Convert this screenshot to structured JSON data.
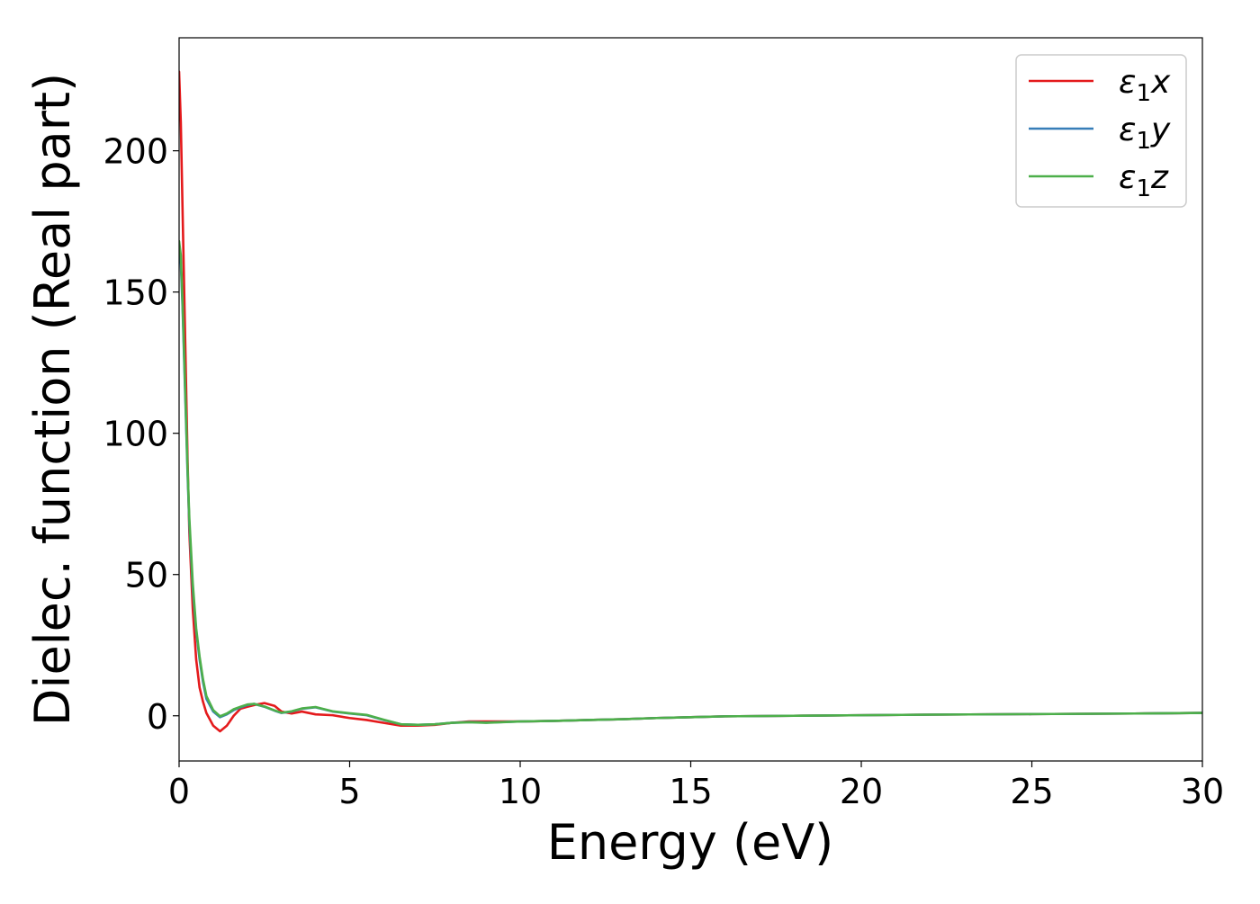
{
  "chart_data": {
    "type": "line",
    "title": "",
    "xlabel": "Energy (eV)",
    "ylabel": "Dielec. function (Real part)",
    "xlim": [
      0,
      30
    ],
    "ylim": [
      -16,
      240
    ],
    "xticks": [
      0,
      5,
      10,
      15,
      20,
      25,
      30
    ],
    "xtick_labels": [
      "0",
      "5",
      "10",
      "15",
      "20",
      "25",
      "30"
    ],
    "yticks": [
      0,
      50,
      100,
      150,
      200
    ],
    "ytick_labels": [
      "0",
      "50",
      "100",
      "150",
      "200"
    ],
    "grid": false,
    "legend": {
      "position": "top-right",
      "entries": [
        "ε1x",
        "ε1y",
        "ε1z"
      ]
    },
    "series": [
      {
        "name": "ε1x",
        "color": "#e41a1c",
        "x": [
          0.0,
          0.05,
          0.1,
          0.15,
          0.2,
          0.25,
          0.3,
          0.4,
          0.5,
          0.6,
          0.7,
          0.8,
          1.0,
          1.2,
          1.4,
          1.6,
          1.8,
          2.0,
          2.2,
          2.5,
          2.8,
          3.0,
          3.3,
          3.6,
          4.0,
          4.5,
          5.0,
          5.5,
          6.0,
          6.5,
          7.0,
          7.5,
          8.0,
          8.5,
          9.0,
          10.0,
          11.0,
          12.0,
          13.0,
          14.0,
          15.0,
          16.0,
          18.0,
          20.0,
          22.0,
          25.0,
          28.0,
          30.0
        ],
        "values": [
          228,
          210,
          180,
          150,
          120,
          90,
          65,
          38,
          20,
          10,
          5,
          1,
          -3.5,
          -5.5,
          -3.5,
          0,
          2.5,
          3.2,
          3.8,
          4.5,
          3.5,
          1.5,
          0.8,
          1.5,
          0.5,
          0.2,
          -0.8,
          -1.5,
          -2.5,
          -3.5,
          -3.5,
          -3.2,
          -2.5,
          -2.0,
          -2.0,
          -2.0,
          -1.8,
          -1.5,
          -1.2,
          -0.8,
          -0.5,
          -0.2,
          0.0,
          0.2,
          0.4,
          0.6,
          0.8,
          1.0
        ]
      },
      {
        "name": "ε1y",
        "color": "#377eb8",
        "x": [
          0.0,
          0.05,
          0.1,
          0.15,
          0.2,
          0.25,
          0.3,
          0.4,
          0.5,
          0.6,
          0.7,
          0.8,
          1.0,
          1.2,
          1.4,
          1.6,
          1.8,
          2.0,
          2.2,
          2.5,
          2.8,
          3.0,
          3.3,
          3.6,
          4.0,
          4.5,
          5.0,
          5.5,
          6.0,
          6.5,
          7.0,
          7.5,
          8.0,
          8.5,
          9.0,
          10.0,
          11.0,
          12.0,
          13.0,
          14.0,
          15.0,
          16.0,
          18.0,
          20.0,
          22.0,
          25.0,
          28.0,
          30.0
        ],
        "values": [
          165,
          160,
          145,
          125,
          105,
          85,
          68,
          45,
          30,
          20,
          12,
          6,
          1.5,
          -0.5,
          0.5,
          2.0,
          3.0,
          3.8,
          4.2,
          3.2,
          1.8,
          1.0,
          1.5,
          2.5,
          3.0,
          1.5,
          0.8,
          0.2,
          -1.5,
          -3.0,
          -3.2,
          -3.0,
          -2.5,
          -2.2,
          -2.4,
          -2.0,
          -1.8,
          -1.5,
          -1.2,
          -0.8,
          -0.5,
          -0.2,
          0.0,
          0.2,
          0.4,
          0.6,
          0.8,
          1.0
        ]
      },
      {
        "name": "ε1z",
        "color": "#4daf4a",
        "x": [
          0.0,
          0.05,
          0.1,
          0.15,
          0.2,
          0.25,
          0.3,
          0.4,
          0.5,
          0.6,
          0.7,
          0.8,
          1.0,
          1.2,
          1.4,
          1.6,
          1.8,
          2.0,
          2.2,
          2.5,
          2.8,
          3.0,
          3.3,
          3.6,
          4.0,
          4.5,
          5.0,
          5.5,
          6.0,
          6.5,
          7.0,
          7.5,
          8.0,
          8.5,
          9.0,
          10.0,
          11.0,
          12.0,
          13.0,
          14.0,
          15.0,
          16.0,
          18.0,
          20.0,
          22.0,
          25.0,
          28.0,
          30.0
        ],
        "values": [
          168,
          163,
          147,
          127,
          107,
          87,
          70,
          47,
          31,
          21,
          13,
          7,
          2.0,
          -0.2,
          0.8,
          2.3,
          3.2,
          4.0,
          4.2,
          3.3,
          1.9,
          1.1,
          1.6,
          2.6,
          3.1,
          1.6,
          0.9,
          0.3,
          -1.4,
          -3.0,
          -3.2,
          -3.0,
          -2.5,
          -2.3,
          -2.5,
          -2.0,
          -1.8,
          -1.5,
          -1.2,
          -0.8,
          -0.5,
          -0.2,
          0.0,
          0.2,
          0.4,
          0.6,
          0.8,
          1.0
        ]
      }
    ]
  }
}
